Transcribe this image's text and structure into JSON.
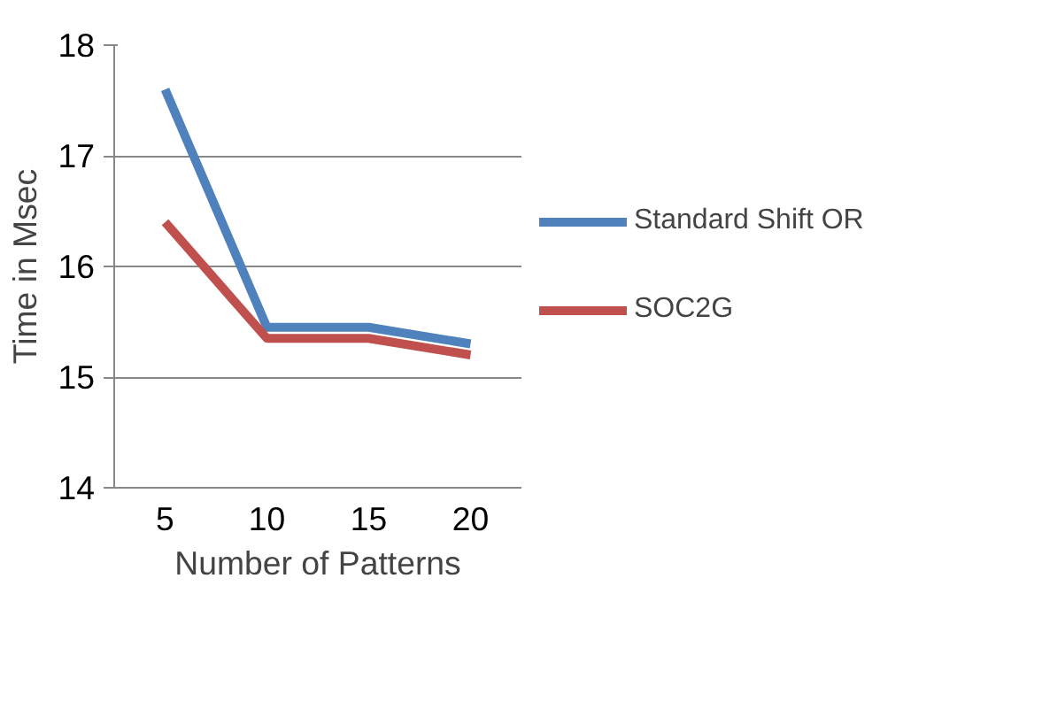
{
  "chart_data": {
    "type": "line",
    "xlabel": "Number of Patterns",
    "ylabel": "Time in Msec",
    "categories": [
      "5",
      "10",
      "15",
      "20"
    ],
    "series": [
      {
        "name": "Standard Shift OR",
        "color": "#4f81bd",
        "values": [
          17.6,
          15.45,
          15.45,
          15.3
        ]
      },
      {
        "name": "SOC2G",
        "color": "#c0504d",
        "values": [
          16.4,
          15.35,
          15.35,
          15.2
        ]
      }
    ],
    "ylim": [
      14,
      18
    ],
    "yticks": [
      14,
      15,
      16,
      17,
      18
    ],
    "grid": "y",
    "legend": "right",
    "marker": "none",
    "line_style": "solid"
  }
}
